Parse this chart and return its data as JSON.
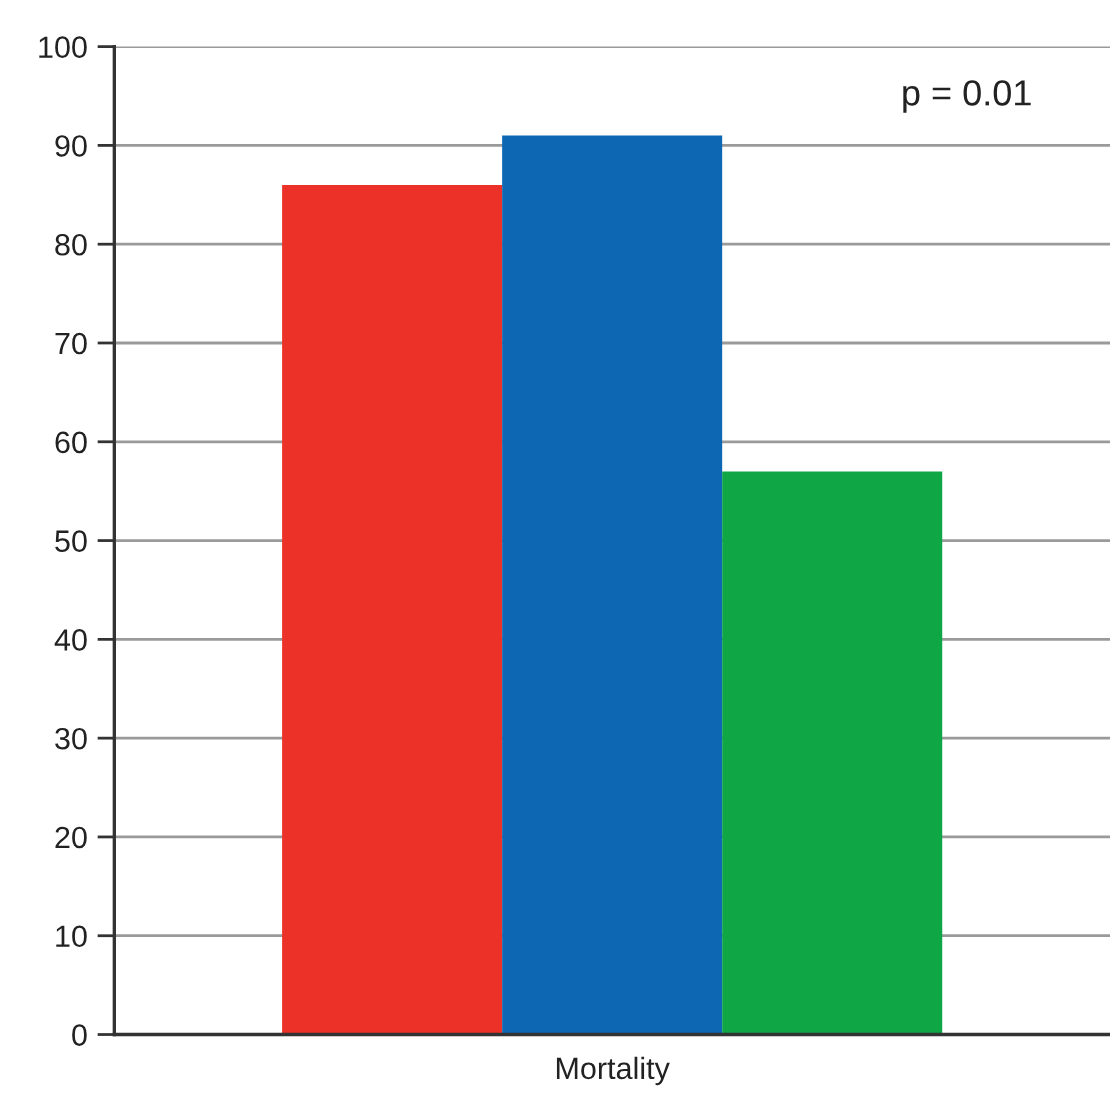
{
  "chart_data": {
    "type": "bar",
    "categories": [
      "Mortality"
    ],
    "series": [
      {
        "color": "#ec3228",
        "values": [
          86
        ]
      },
      {
        "color": "#0e67b2",
        "values": [
          91
        ]
      },
      {
        "color": "#0fa646",
        "values": [
          57
        ]
      }
    ],
    "ylim": [
      0,
      100
    ],
    "yticks": [
      0,
      10,
      20,
      30,
      40,
      50,
      60,
      70,
      80,
      90,
      100
    ],
    "grid": "y",
    "legend": false,
    "annotations": [
      "p = 0.01"
    ]
  }
}
